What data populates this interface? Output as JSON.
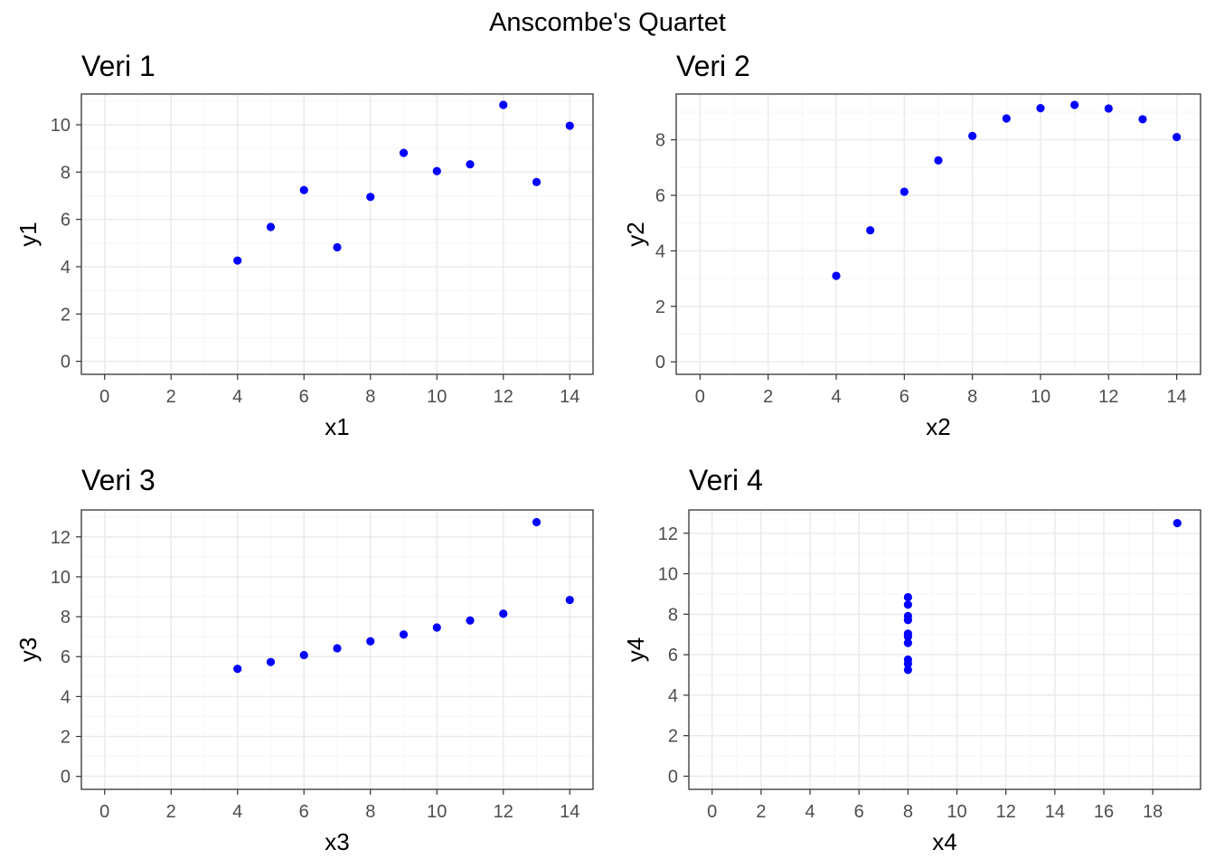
{
  "title": "Anscombe's Quartet",
  "colors": {
    "point": "#0000ff",
    "grid_major": "#ebebeb",
    "grid_minor": "#f5f5f5",
    "panel_border": "#333333",
    "tick_text": "#4d4d4d"
  },
  "chart_data": [
    {
      "type": "scatter",
      "title": "Veri 1",
      "xlabel": "x1",
      "ylabel": "y1",
      "xlim": [
        -0.7,
        14.7
      ],
      "ylim": [
        -0.55,
        11.3
      ],
      "xticks": [
        0,
        2,
        4,
        6,
        8,
        10,
        12,
        14
      ],
      "yticks": [
        0,
        2,
        4,
        6,
        8,
        10
      ],
      "grid": true,
      "x": [
        10,
        8,
        13,
        9,
        11,
        14,
        6,
        4,
        12,
        7,
        5
      ],
      "y": [
        8.04,
        6.95,
        7.58,
        8.81,
        8.33,
        9.96,
        7.24,
        4.26,
        10.84,
        4.82,
        5.68
      ]
    },
    {
      "type": "scatter",
      "title": "Veri 2",
      "xlabel": "x2",
      "ylabel": "y2",
      "xlim": [
        -0.7,
        14.7
      ],
      "ylim": [
        -0.45,
        9.65
      ],
      "xticks": [
        0,
        2,
        4,
        6,
        8,
        10,
        12,
        14
      ],
      "yticks": [
        0,
        2,
        4,
        6,
        8
      ],
      "grid": true,
      "x": [
        10,
        8,
        13,
        9,
        11,
        14,
        6,
        4,
        12,
        7,
        5
      ],
      "y": [
        9.14,
        8.14,
        8.74,
        8.77,
        9.26,
        8.1,
        6.13,
        3.1,
        9.13,
        7.26,
        4.74
      ]
    },
    {
      "type": "scatter",
      "title": "Veri 3",
      "xlabel": "x3",
      "ylabel": "y3",
      "xlim": [
        -0.7,
        14.7
      ],
      "ylim": [
        -0.65,
        13.35
      ],
      "xticks": [
        0,
        2,
        4,
        6,
        8,
        10,
        12,
        14
      ],
      "yticks": [
        0,
        2,
        4,
        6,
        8,
        10,
        12
      ],
      "grid": true,
      "x": [
        10,
        8,
        13,
        9,
        11,
        14,
        6,
        4,
        12,
        7,
        5
      ],
      "y": [
        7.46,
        6.77,
        12.74,
        7.11,
        7.81,
        8.84,
        6.08,
        5.39,
        8.15,
        6.42,
        5.73
      ]
    },
    {
      "type": "scatter",
      "title": "Veri 4",
      "xlabel": "x4",
      "ylabel": "y4",
      "xlim": [
        -0.95,
        19.95
      ],
      "ylim": [
        -0.65,
        13.15
      ],
      "xticks": [
        0,
        2,
        4,
        6,
        8,
        10,
        12,
        14,
        16,
        18
      ],
      "yticks": [
        0,
        2,
        4,
        6,
        8,
        10,
        12
      ],
      "grid": true,
      "x": [
        8,
        8,
        8,
        8,
        8,
        8,
        8,
        19,
        8,
        8,
        8
      ],
      "y": [
        6.58,
        5.76,
        7.71,
        8.84,
        8.47,
        7.04,
        5.25,
        12.5,
        5.56,
        7.91,
        6.89
      ]
    }
  ]
}
